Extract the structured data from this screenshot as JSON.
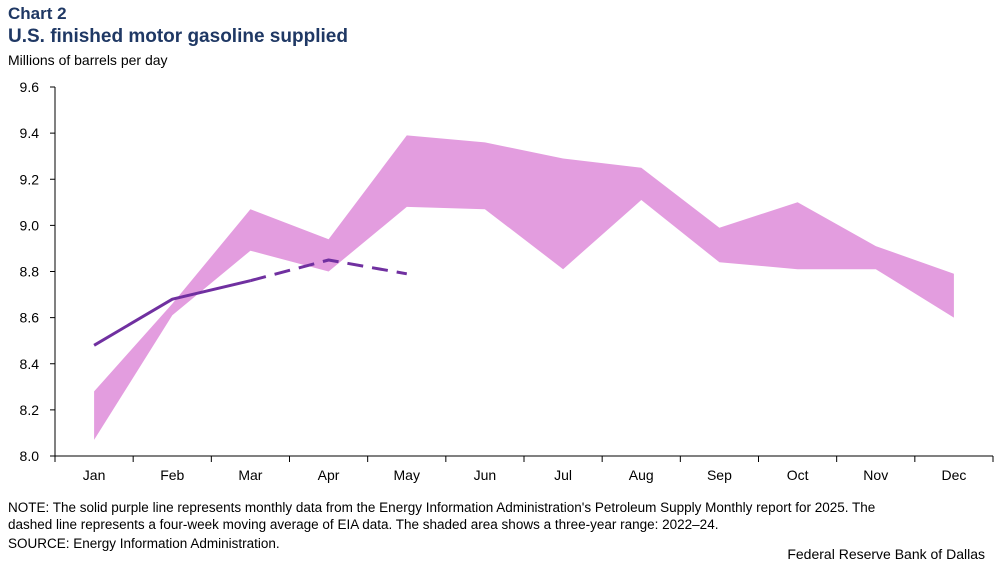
{
  "header": {
    "label": "Chart 2",
    "title": "U.S. finished motor gasoline supplied",
    "units": "Millions of barrels per day"
  },
  "footer": {
    "note_line1": "NOTE: The solid purple line represents monthly data from the Energy Information Administration's Petroleum Supply Monthly report for 2025. The",
    "note_line2": "dashed line represents a four-week moving average of EIA data. The shaded area shows a three-year range: 2022–24.",
    "source": "SOURCE: Energy Information Administration.",
    "credit": "Federal Reserve Bank of Dallas"
  },
  "chart_data": {
    "type": "area",
    "title": "U.S. finished motor gasoline supplied",
    "ylabel": "Millions of barrels per day",
    "xlabel": "",
    "ylim": [
      8.0,
      9.6
    ],
    "y_ticks": [
      "8.0",
      "8.2",
      "8.4",
      "8.6",
      "8.8",
      "9.0",
      "9.2",
      "9.4",
      "9.6"
    ],
    "categories": [
      "Jan",
      "Feb",
      "Mar",
      "Apr",
      "May",
      "Jun",
      "Jul",
      "Aug",
      "Sep",
      "Oct",
      "Nov",
      "Dec"
    ],
    "grid": false,
    "legend": "none",
    "colors": {
      "range": "#e39ddf",
      "line": "#7030a0"
    },
    "range_band": {
      "high": [
        8.28,
        8.66,
        9.07,
        8.94,
        9.39,
        9.36,
        9.29,
        9.25,
        8.99,
        9.1,
        8.91,
        8.79
      ],
      "low": [
        8.07,
        8.61,
        8.89,
        8.8,
        9.08,
        9.07,
        8.81,
        9.11,
        8.84,
        8.81,
        8.81,
        8.6
      ]
    },
    "series": [
      {
        "style": "solid",
        "values": [
          8.48,
          8.68,
          8.76,
          null,
          null,
          null,
          null,
          null,
          null,
          null,
          null,
          null
        ]
      },
      {
        "style": "dashed",
        "values": [
          null,
          null,
          8.76,
          8.85,
          8.79,
          null,
          null,
          null,
          null,
          null,
          null,
          null
        ]
      }
    ]
  }
}
